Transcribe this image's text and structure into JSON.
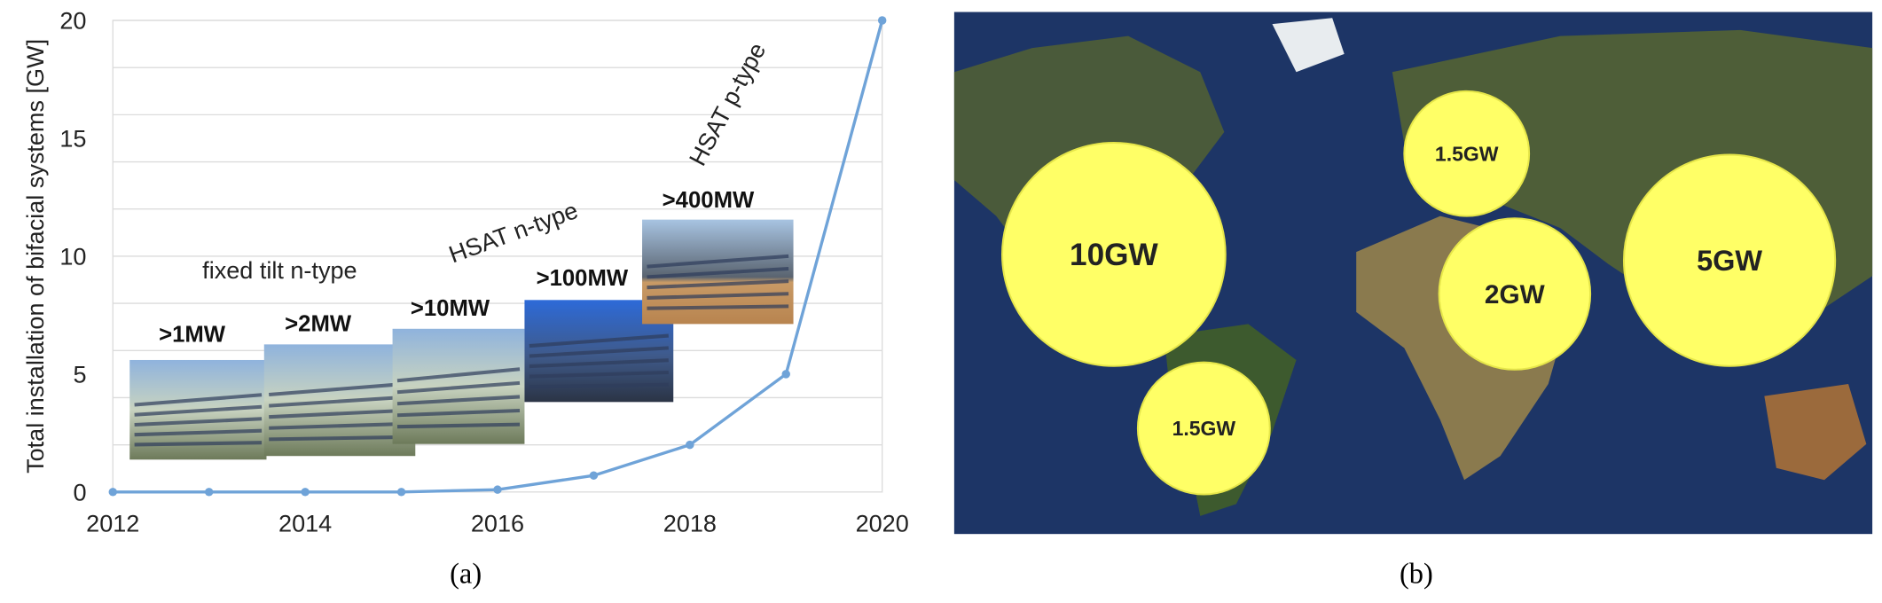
{
  "chart_data": [
    {
      "type": "line",
      "y_label": "Total installation of bifacial systems [GW]",
      "x": [
        2012,
        2013,
        2014,
        2015,
        2016,
        2017,
        2018,
        2019,
        2020
      ],
      "series": [
        {
          "color": "#6fa3d8",
          "values": [
            0,
            0,
            0,
            0,
            0.1,
            0.7,
            2,
            5,
            20
          ]
        }
      ],
      "xlim": [
        2012,
        2020
      ],
      "xticks": [
        2012,
        2014,
        2016,
        2018,
        2020
      ],
      "ylim": [
        0,
        20
      ],
      "yticks": [
        0,
        5,
        10,
        15,
        20
      ],
      "ygrid": [
        2,
        4,
        6,
        8,
        10,
        12,
        14,
        16,
        18,
        20
      ],
      "grid": true,
      "annotations": [
        "fixed tilt n-type",
        "HSAT n-type",
        "HSAT p-type"
      ],
      "image_labels": [
        ">1MW",
        ">2MW",
        ">10MW",
        ">100MW",
        ">400MW"
      ],
      "caption": "(a)"
    },
    {
      "type": "map",
      "bubbles": [
        "10GW",
        "1.5GW",
        "2GW",
        "5GW",
        "1.5GW"
      ],
      "caption": "(b)"
    }
  ]
}
